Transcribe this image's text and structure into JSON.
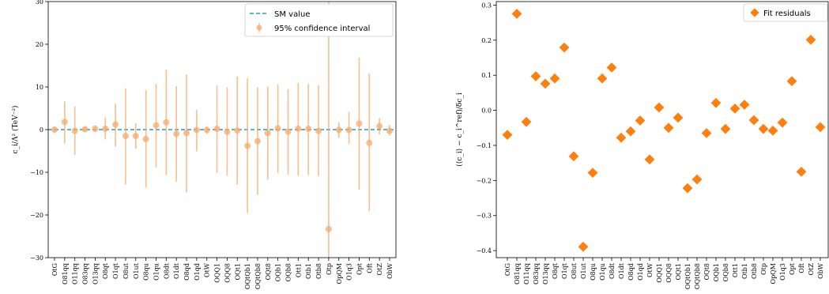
{
  "chart_data": [
    {
      "type": "scatter",
      "ylabel": "c_i/Λ² (TeV⁻²)",
      "ylim": [
        -30,
        30
      ],
      "yticks": [
        -30,
        -20,
        -10,
        0,
        10,
        20,
        30
      ],
      "categories": [
        "OtG",
        "O81qq",
        "O11qq",
        "O83qq",
        "O13qq",
        "O8qt",
        "O1qt",
        "O8ut",
        "O1ut",
        "O8qu",
        "O1qu",
        "O8dt",
        "O1dt",
        "O8qd",
        "O1qd",
        "OtW",
        "OQQ1",
        "OQQ8",
        "OQt1",
        "OQtQb1",
        "OQtQb8",
        "OQt8",
        "OQb1",
        "OQb8",
        "Ott1",
        "Otb1",
        "Otb8",
        "Otp",
        "OpQM",
        "O1q3",
        "Opt",
        "Oft",
        "OtZ",
        "ObW"
      ],
      "series": [
        {
          "name": "95% confidence interval",
          "color": "#f5a96b",
          "values": [
            0,
            1.8,
            -0.3,
            0.1,
            0.2,
            0.2,
            1.2,
            -1.5,
            -1.5,
            -2.2,
            1.0,
            1.7,
            -1.0,
            -0.8,
            -0.1,
            -0.1,
            0.2,
            -0.5,
            -0.2,
            -3.8,
            -2.7,
            -0.8,
            0.3,
            -0.5,
            0.2,
            0.2,
            -0.3,
            -23.3,
            -0.1,
            -0.1,
            1.4,
            -3.1,
            0.8,
            -0.3
          ],
          "lower": [
            -0.6,
            -3.2,
            -5.9,
            -0.6,
            -0.6,
            -2.3,
            -4.0,
            -12.9,
            -4.5,
            -13.6,
            -8.8,
            -10.7,
            -12.2,
            -14.7,
            -5.1,
            -1.0,
            -10.1,
            -10.8,
            -12.9,
            -19.5,
            -15.3,
            -11.7,
            -10.1,
            -10.5,
            -10.8,
            -10.6,
            -10.9,
            -30,
            -1.9,
            -3.4,
            -14.1,
            -19.1,
            -1.1,
            -1.4
          ],
          "upper": [
            0.6,
            6.6,
            5.4,
            0.8,
            0.9,
            2.9,
            6.1,
            9.7,
            1.5,
            9.2,
            10.7,
            14.1,
            10.2,
            12.9,
            4.6,
            0.8,
            10.3,
            9.9,
            12.4,
            12.0,
            9.9,
            10.1,
            10.6,
            9.5,
            10.9,
            10.7,
            10.4,
            30,
            1.7,
            4.1,
            16.9,
            13.1,
            2.7,
            1.1
          ]
        },
        {
          "name": "SM value",
          "color": "#1f9fc4",
          "type": "line",
          "y": 0
        }
      ],
      "legend": {
        "position": "top-right",
        "entries": [
          "SM value",
          "95% confidence interval"
        ]
      }
    },
    {
      "type": "scatter",
      "ylabel": "(⟨c_i⟩ − c_i^ref)/δc_i",
      "ylim": [
        -0.42,
        0.31
      ],
      "yticks": [
        -0.4,
        -0.3,
        -0.2,
        -0.1,
        0.0,
        0.1,
        0.2,
        0.3
      ],
      "categories": [
        "OtG",
        "O81qq",
        "O11qq",
        "O83qq",
        "O13qq",
        "O8qt",
        "O1qt",
        "O8ut",
        "O1ut",
        "O8qu",
        "O1qu",
        "O8dt",
        "O1dt",
        "O8qd",
        "O1qd",
        "OtW",
        "OQQ1",
        "OQQ8",
        "OQt1",
        "OQtQb1",
        "OQtQb8",
        "OQt8",
        "OQb1",
        "OQb8",
        "Ott1",
        "Otb1",
        "Otb8",
        "Otp",
        "OpQM",
        "O1q3",
        "Opt",
        "Oft",
        "OtZ",
        "ObW"
      ],
      "series": [
        {
          "name": "Fit residuals",
          "color": "#ff7f0e",
          "values": [
            -0.07,
            0.275,
            -0.033,
            0.097,
            0.076,
            0.091,
            0.179,
            -0.131,
            -0.389,
            -0.178,
            0.091,
            0.122,
            -0.078,
            -0.06,
            -0.029,
            -0.14,
            0.008,
            -0.05,
            -0.021,
            -0.222,
            -0.197,
            -0.065,
            0.021,
            -0.053,
            0.005,
            0.016,
            -0.028,
            -0.053,
            -0.058,
            -0.035,
            0.083,
            -0.175,
            0.201,
            -0.048
          ]
        }
      ],
      "legend": {
        "position": "top-right",
        "entries": [
          "Fit residuals"
        ]
      }
    }
  ]
}
